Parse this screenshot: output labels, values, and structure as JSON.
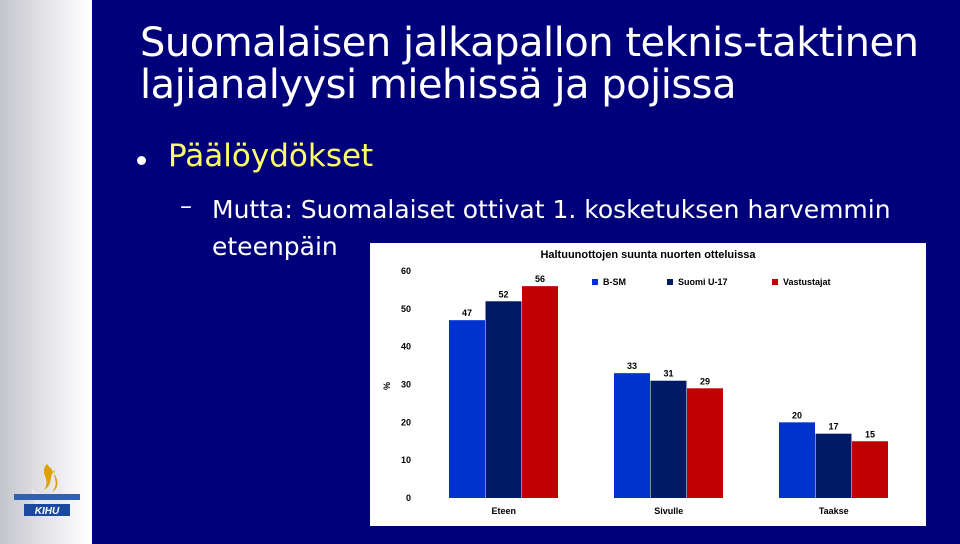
{
  "slide": {
    "title_line1": "Suomalaisen jalkapallon teknis-taktinen",
    "title_line2": "lajianalyysi miehissä ja pojissa",
    "bullet": "Päälöydökset",
    "sub_bullet": "Mutta: Suomalaiset ottivat 1. kosketuksen harvemmin eteenpäin",
    "logo_text": "KIHU"
  },
  "chart_data": {
    "type": "bar",
    "title": "Haltuunottojen suunta nuorten otteluissa",
    "ylabel": "%",
    "ylim": [
      0,
      60
    ],
    "yticks": [
      0,
      10,
      20,
      30,
      40,
      50,
      60
    ],
    "categories": [
      "Eteen",
      "Sivulle",
      "Taakse"
    ],
    "legend_position": "top-right",
    "series": [
      {
        "name": "B-SM",
        "color": "#0033cc",
        "values": [
          47,
          33,
          20
        ]
      },
      {
        "name": "Suomi U-17",
        "color": "#001a66",
        "values": [
          52,
          31,
          17
        ]
      },
      {
        "name": "Vastustajat",
        "color": "#c00000",
        "values": [
          56,
          29,
          15
        ]
      }
    ]
  }
}
